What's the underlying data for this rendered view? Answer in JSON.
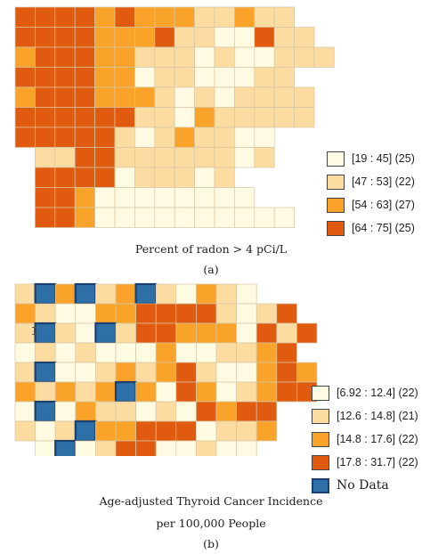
{
  "map_a": {
    "legend": [
      {
        "label": "[19 : 45] (25)",
        "color": "#fffbe3"
      },
      {
        "label": "[47 : 53] (22)",
        "color": "#fcdca0"
      },
      {
        "label": "[54 : 63] (27)",
        "color": "#f9a32a"
      },
      {
        "label": "[64 : 75] (25)",
        "color": "#e05a10"
      }
    ],
    "caption": "Percent of radon > 4 pCi/L",
    "panel_label": "(a)"
  },
  "map_b": {
    "legend": [
      {
        "label": "[6.92 : 12.4] (22)",
        "color": "#fffbe3"
      },
      {
        "label": "[12.6 : 14.8] (21)",
        "color": "#fcdca0"
      },
      {
        "label": "[14.8 : 17.6] (22)",
        "color": "#f9a32a"
      },
      {
        "label": "[17.8 : 31.7] (22)",
        "color": "#e05a10"
      },
      {
        "label": "No Data",
        "color": "#2f6fa8"
      }
    ],
    "caption_line1": "Age-adjusted Thyroid Cancer Incidence",
    "caption_line2": "per 100,000 People",
    "panel_label": "(b)"
  },
  "cursor_glyph": "I"
}
